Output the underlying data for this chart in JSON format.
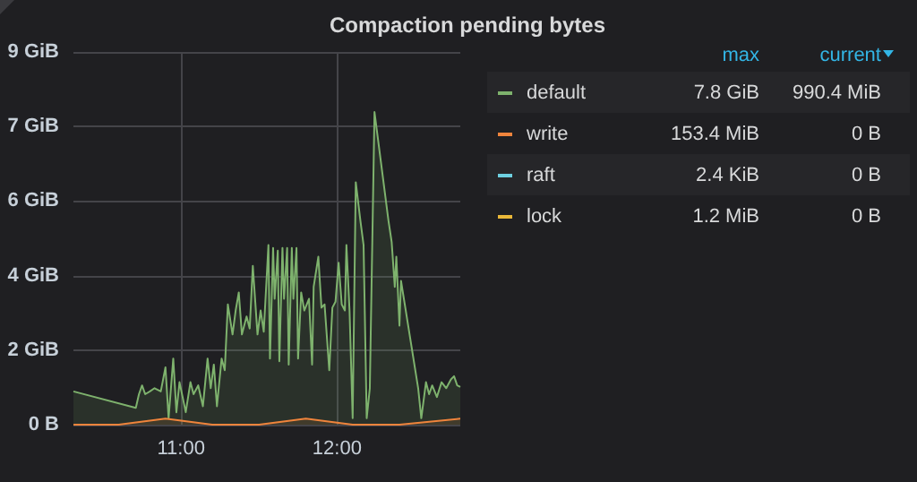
{
  "chart_data": {
    "type": "area",
    "title": "Compaction pending bytes",
    "x": [
      10.31,
      10.71,
      10.73,
      10.75,
      10.77,
      10.8,
      10.83,
      10.87,
      10.9,
      10.92,
      10.95,
      10.97,
      10.99,
      11.01,
      11.03,
      11.06,
      11.08,
      11.11,
      11.14,
      11.17,
      11.19,
      11.21,
      11.23,
      11.26,
      11.28,
      11.3,
      11.33,
      11.35,
      11.37,
      11.39,
      11.42,
      11.44,
      11.46,
      11.49,
      11.51,
      11.53,
      11.56,
      11.57,
      11.59,
      11.6,
      11.62,
      11.63,
      11.65,
      11.66,
      11.68,
      11.69,
      11.71,
      11.72,
      11.74,
      11.75,
      11.77,
      11.79,
      11.82,
      11.84,
      11.85,
      11.88,
      11.9,
      11.92,
      11.95,
      11.97,
      11.99,
      12.01,
      12.03,
      12.05,
      12.06,
      12.08,
      12.1,
      12.12,
      12.15,
      12.17,
      12.19,
      12.21,
      12.24,
      12.33,
      12.35,
      12.37,
      12.38,
      12.4,
      12.41,
      12.52,
      12.54,
      12.57,
      12.59,
      12.61,
      12.64,
      12.67,
      12.7,
      12.73,
      12.75,
      12.77,
      12.79
    ],
    "series": [
      {
        "name": "default",
        "color": "#7eb26d",
        "values": [
          0.83,
          0.42,
          0.76,
          0.98,
          0.76,
          0.83,
          0.91,
          0.83,
          1.43,
          0.16,
          1.65,
          0.31,
          1.06,
          0.69,
          0.31,
          1.06,
          0.76,
          0.98,
          0.46,
          1.65,
          0.91,
          1.5,
          0.46,
          1.65,
          1.36,
          3.0,
          2.25,
          2.85,
          3.3,
          2.25,
          2.7,
          2.4,
          3.96,
          2.25,
          2.85,
          2.32,
          4.48,
          1.65,
          4.41,
          3.14,
          4.34,
          1.58,
          4.41,
          3.14,
          4.41,
          1.5,
          4.41,
          3.14,
          4.41,
          1.65,
          3.3,
          2.85,
          3.14,
          1.5,
          3.44,
          4.19,
          2.92,
          3.0,
          1.36,
          2.92,
          3.07,
          4.04,
          3.0,
          2.85,
          4.48,
          2.85,
          0.16,
          6.05,
          5.08,
          4.48,
          0.16,
          0.91,
          7.8,
          5.08,
          4.56,
          3.44,
          4.19,
          2.47,
          3.59,
          0.91,
          0.16,
          1.06,
          0.76,
          0.98,
          0.69,
          1.06,
          0.91,
          1.13,
          1.21,
          0.98,
          0.94
        ]
      },
      {
        "name": "write",
        "color": "#ef843c",
        "x": [
          10.31,
          10.6,
          10.9,
          11.2,
          11.5,
          11.8,
          12.1,
          12.4,
          12.79
        ],
        "values": [
          0,
          0,
          0.15,
          0,
          0,
          0.15,
          0,
          0,
          0.15
        ]
      },
      {
        "name": "raft",
        "color": "#6ed0e0",
        "values": [
          null,
          null,
          null,
          null,
          null,
          null,
          null,
          null,
          null,
          null,
          null,
          null,
          null,
          null,
          null,
          null,
          null,
          null,
          null,
          null,
          null,
          null,
          null,
          null,
          null,
          null,
          null,
          null,
          null,
          null,
          null,
          null,
          null,
          null,
          null,
          null,
          null,
          null,
          null,
          null,
          null,
          null,
          null,
          null,
          null,
          null,
          null,
          null,
          null,
          null,
          null,
          null,
          null,
          null,
          null,
          null,
          null,
          null,
          null,
          null,
          null,
          null,
          null,
          null,
          null,
          null,
          null,
          null,
          null,
          null,
          null,
          null,
          null,
          null,
          null,
          null,
          null,
          null,
          null,
          null,
          null,
          null,
          null,
          null,
          null,
          null,
          null,
          null,
          null,
          null,
          null
        ]
      },
      {
        "name": "lock",
        "color": "#eab839",
        "values": [
          null,
          null,
          null,
          null,
          null,
          null,
          null,
          null,
          null,
          null,
          null,
          null,
          null,
          null,
          null,
          null,
          null,
          null,
          null,
          null,
          null,
          null,
          null,
          null,
          null,
          null,
          null,
          null,
          null,
          null,
          null,
          null,
          null,
          null,
          null,
          null,
          null,
          null,
          null,
          null,
          null,
          null,
          null,
          null,
          null,
          null,
          null,
          null,
          null,
          null,
          null,
          null,
          null,
          null,
          null,
          null,
          null,
          null,
          null,
          null,
          null,
          null,
          null,
          null,
          null,
          null,
          null,
          null,
          null,
          null,
          null,
          null,
          null,
          null,
          null,
          null,
          null,
          null,
          null,
          null,
          null,
          null,
          null,
          null,
          null,
          null,
          null,
          null,
          null,
          null,
          null
        ]
      }
    ],
    "xlim": [
      10.31,
      12.79
    ],
    "xticks": [
      {
        "value": 11,
        "label": "11:00"
      },
      {
        "value": 12,
        "label": "12:00"
      }
    ],
    "ylim": [
      0,
      9.3
    ],
    "yticks": [
      {
        "value": 0,
        "label": "0 B"
      },
      {
        "value": 1.86,
        "label": "2 GiB"
      },
      {
        "value": 3.72,
        "label": "4 GiB"
      },
      {
        "value": 5.58,
        "label": "6 GiB"
      },
      {
        "value": 7.44,
        "label": "7 GiB"
      },
      {
        "value": 9.3,
        "label": "9 GiB"
      }
    ],
    "grid": true,
    "legend": "right",
    "marker": "none",
    "annotations": [
      "max",
      "current",
      "7.8 GiB",
      "990.4 MiB",
      "153.4 MiB",
      "0 B",
      "2.4 KiB",
      "0 B",
      "1.2 MiB",
      "0 B"
    ]
  }
}
